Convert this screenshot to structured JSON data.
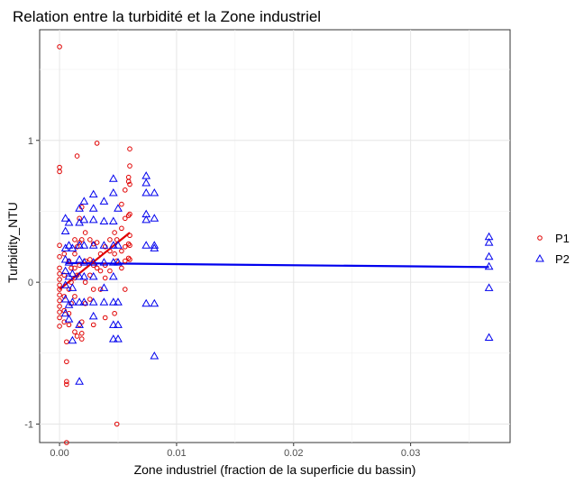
{
  "chart_data": {
    "type": "scatter",
    "title": "Relation entre la turbidité et la Zone industriel",
    "xlabel": "Zone industriel (fraction de la superficie du bassin)",
    "ylabel": "Turbidity_NTU",
    "xlim": [
      -0.0017,
      0.0385
    ],
    "ylim": [
      -1.13,
      1.78
    ],
    "x_ticks": [
      0.0,
      0.01,
      0.02,
      0.03
    ],
    "x_tick_labels": [
      "0.00",
      "0.01",
      "0.02",
      "0.03"
    ],
    "y_ticks": [
      -1,
      0,
      1
    ],
    "y_tick_labels": [
      "-1",
      "0",
      "1"
    ],
    "grid": true,
    "legend_position": "right",
    "series": [
      {
        "name": "P1",
        "color": "#e00000",
        "marker": "circle",
        "points": [
          [
            0.0,
            1.66
          ],
          [
            0.0,
            0.81
          ],
          [
            0.0,
            0.78
          ],
          [
            0.0,
            0.26
          ],
          [
            0.0,
            0.18
          ],
          [
            0.0,
            0.1
          ],
          [
            0.0,
            0.06
          ],
          [
            0.0,
            0.02
          ],
          [
            0.0,
            -0.02
          ],
          [
            0.0,
            -0.05
          ],
          [
            0.0,
            -0.09
          ],
          [
            0.0,
            -0.13
          ],
          [
            0.0,
            -0.17
          ],
          [
            0.0,
            -0.21
          ],
          [
            0.0,
            -0.25
          ],
          [
            0.0,
            -0.31
          ],
          [
            0.0004,
            0.2
          ],
          [
            0.0004,
            0.05
          ],
          [
            0.0004,
            -0.1
          ],
          [
            0.0004,
            -0.2
          ],
          [
            0.0004,
            -0.28
          ],
          [
            0.0006,
            -0.42
          ],
          [
            0.0006,
            -0.56
          ],
          [
            0.0006,
            -0.7
          ],
          [
            0.0006,
            -0.72
          ],
          [
            0.0006,
            -1.13
          ],
          [
            0.0008,
            0.15
          ],
          [
            0.0008,
            -0.05
          ],
          [
            0.0008,
            -0.22
          ],
          [
            0.0008,
            -0.3
          ],
          [
            0.001,
            0.1
          ],
          [
            0.001,
            0.0
          ],
          [
            0.001,
            -0.15
          ],
          [
            0.0013,
            0.3
          ],
          [
            0.0013,
            0.2
          ],
          [
            0.0013,
            0.1
          ],
          [
            0.0013,
            0.03
          ],
          [
            0.0013,
            -0.1
          ],
          [
            0.0013,
            -0.35
          ],
          [
            0.0015,
            0.89
          ],
          [
            0.0015,
            0.25
          ],
          [
            0.0015,
            0.05
          ],
          [
            0.0015,
            -0.38
          ],
          [
            0.0017,
            0.45
          ],
          [
            0.0017,
            0.28
          ],
          [
            0.0017,
            0.12
          ],
          [
            0.0017,
            -0.3
          ],
          [
            0.0019,
            0.53
          ],
          [
            0.0019,
            0.3
          ],
          [
            0.0019,
            -0.28
          ],
          [
            0.0019,
            -0.36
          ],
          [
            0.0019,
            -0.4
          ],
          [
            0.0022,
            0.35
          ],
          [
            0.0022,
            0.15
          ],
          [
            0.0022,
            0.0
          ],
          [
            0.0022,
            -0.15
          ],
          [
            0.0026,
            0.3
          ],
          [
            0.0026,
            0.16
          ],
          [
            0.0026,
            0.05
          ],
          [
            0.0026,
            -0.12
          ],
          [
            0.0029,
            0.27
          ],
          [
            0.0029,
            0.12
          ],
          [
            0.0029,
            -0.05
          ],
          [
            0.0029,
            -0.3
          ],
          [
            0.0032,
            0.98
          ],
          [
            0.0032,
            0.28
          ],
          [
            0.0032,
            0.1
          ],
          [
            0.0035,
            0.2
          ],
          [
            0.0035,
            0.08
          ],
          [
            0.0035,
            -0.05
          ],
          [
            0.0039,
            0.25
          ],
          [
            0.0039,
            0.12
          ],
          [
            0.0039,
            0.03
          ],
          [
            0.0039,
            -0.25
          ],
          [
            0.0043,
            0.3
          ],
          [
            0.0043,
            0.22
          ],
          [
            0.0043,
            0.08
          ],
          [
            0.0047,
            0.35
          ],
          [
            0.0047,
            0.2
          ],
          [
            0.0047,
            -0.22
          ],
          [
            0.0049,
            0.3
          ],
          [
            0.0049,
            0.15
          ],
          [
            0.0049,
            -1.0
          ],
          [
            0.0053,
            0.55
          ],
          [
            0.0053,
            0.38
          ],
          [
            0.0053,
            0.22
          ],
          [
            0.0053,
            0.1
          ],
          [
            0.0056,
            0.65
          ],
          [
            0.0056,
            0.45
          ],
          [
            0.0056,
            0.25
          ],
          [
            0.0056,
            0.15
          ],
          [
            0.0056,
            -0.05
          ],
          [
            0.0059,
            0.74
          ],
          [
            0.0059,
            0.71
          ],
          [
            0.0059,
            0.47
          ],
          [
            0.0059,
            0.27
          ],
          [
            0.0059,
            0.17
          ],
          [
            0.006,
            0.94
          ],
          [
            0.006,
            0.82
          ],
          [
            0.006,
            0.69
          ],
          [
            0.006,
            0.48
          ],
          [
            0.006,
            0.33
          ],
          [
            0.006,
            0.26
          ],
          [
            0.006,
            0.16
          ]
        ]
      },
      {
        "name": "P2",
        "color": "#0000ee",
        "marker": "triangle",
        "points": [
          [
            0.0005,
            0.45
          ],
          [
            0.0005,
            0.36
          ],
          [
            0.0005,
            0.24
          ],
          [
            0.0005,
            0.16
          ],
          [
            0.0005,
            0.08
          ],
          [
            0.0005,
            -0.02
          ],
          [
            0.0005,
            -0.12
          ],
          [
            0.0005,
            -0.22
          ],
          [
            0.0008,
            0.42
          ],
          [
            0.0008,
            0.26
          ],
          [
            0.0008,
            0.14
          ],
          [
            0.0008,
            0.04
          ],
          [
            0.0008,
            -0.16
          ],
          [
            0.0008,
            -0.26
          ],
          [
            0.0011,
            0.24
          ],
          [
            0.0011,
            0.06
          ],
          [
            0.0011,
            -0.04
          ],
          [
            0.0011,
            -0.14
          ],
          [
            0.0011,
            -0.41
          ],
          [
            0.0017,
            0.52
          ],
          [
            0.0017,
            0.42
          ],
          [
            0.0017,
            0.26
          ],
          [
            0.0017,
            0.16
          ],
          [
            0.0017,
            0.04
          ],
          [
            0.0017,
            -0.14
          ],
          [
            0.0017,
            -0.3
          ],
          [
            0.0017,
            -0.7
          ],
          [
            0.0021,
            0.57
          ],
          [
            0.0021,
            0.44
          ],
          [
            0.0021,
            0.26
          ],
          [
            0.0021,
            0.14
          ],
          [
            0.0021,
            0.04
          ],
          [
            0.0021,
            -0.14
          ],
          [
            0.0029,
            0.62
          ],
          [
            0.0029,
            0.52
          ],
          [
            0.0029,
            0.44
          ],
          [
            0.0029,
            0.26
          ],
          [
            0.0029,
            0.14
          ],
          [
            0.0029,
            0.04
          ],
          [
            0.0029,
            -0.14
          ],
          [
            0.0029,
            -0.24
          ],
          [
            0.0038,
            0.57
          ],
          [
            0.0038,
            0.43
          ],
          [
            0.0038,
            0.26
          ],
          [
            0.0038,
            0.14
          ],
          [
            0.0038,
            -0.04
          ],
          [
            0.0038,
            -0.14
          ],
          [
            0.0046,
            0.73
          ],
          [
            0.0046,
            0.63
          ],
          [
            0.0046,
            0.43
          ],
          [
            0.0046,
            0.26
          ],
          [
            0.0046,
            0.14
          ],
          [
            0.0046,
            0.04
          ],
          [
            0.0046,
            -0.14
          ],
          [
            0.0046,
            -0.3
          ],
          [
            0.0046,
            -0.4
          ],
          [
            0.005,
            0.52
          ],
          [
            0.005,
            0.26
          ],
          [
            0.005,
            0.14
          ],
          [
            0.005,
            -0.14
          ],
          [
            0.005,
            -0.3
          ],
          [
            0.005,
            -0.4
          ],
          [
            0.0074,
            0.75
          ],
          [
            0.0074,
            0.7
          ],
          [
            0.0074,
            0.63
          ],
          [
            0.0074,
            0.48
          ],
          [
            0.0074,
            0.44
          ],
          [
            0.0074,
            0.26
          ],
          [
            0.0074,
            -0.15
          ],
          [
            0.0081,
            0.63
          ],
          [
            0.0081,
            0.45
          ],
          [
            0.0081,
            0.26
          ],
          [
            0.0081,
            0.24
          ],
          [
            0.0081,
            -0.15
          ],
          [
            0.0081,
            -0.52
          ],
          [
            0.0367,
            0.32
          ],
          [
            0.0367,
            0.28
          ],
          [
            0.0367,
            0.18
          ],
          [
            0.0367,
            0.11
          ],
          [
            0.0367,
            -0.04
          ],
          [
            0.0367,
            -0.39
          ]
        ]
      }
    ],
    "fit_lines": [
      {
        "series": "P1",
        "color": "#e00000",
        "points": [
          [
            0.0,
            -0.05
          ],
          [
            0.006,
            0.35
          ]
        ]
      },
      {
        "series": "P2",
        "color": "#0000ee",
        "points": [
          [
            0.0005,
            0.135
          ],
          [
            0.0367,
            0.107
          ]
        ]
      }
    ]
  }
}
